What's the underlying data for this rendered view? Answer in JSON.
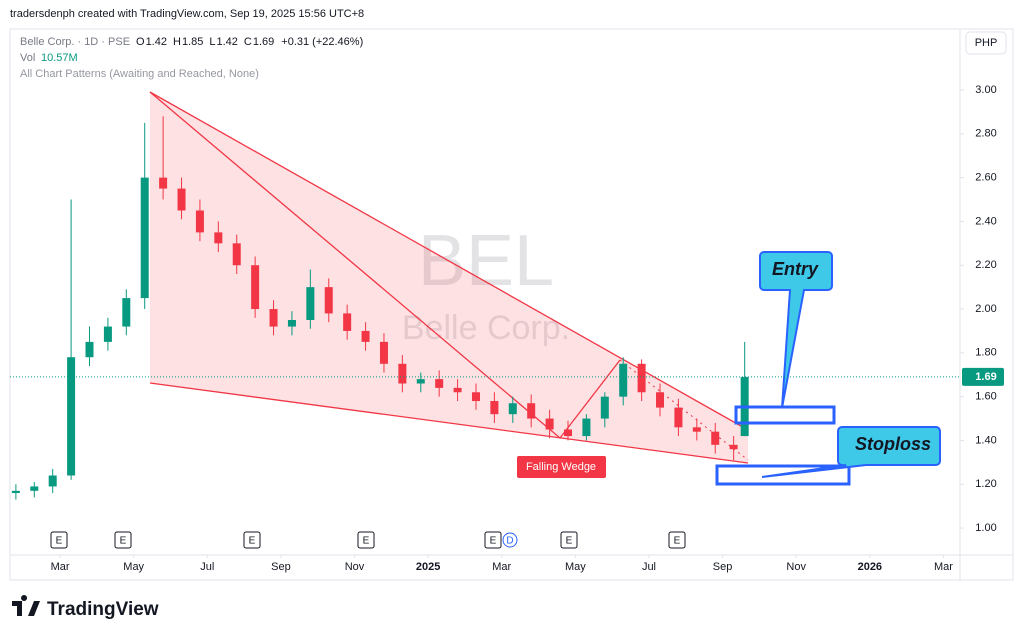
{
  "caption": "tradersdenph created with TradingView.com, Sep 19, 2025 15:56 UTC+8",
  "brand": "TradingView",
  "chart_data": {
    "type": "candlestick",
    "symbol": "Belle Corp. · 1D · PSE",
    "ohlc_legend": [
      [
        "O",
        "1.42"
      ],
      [
        "H",
        "1.85"
      ],
      [
        "L",
        "1.42"
      ],
      [
        "C",
        "1.69"
      ],
      [
        "",
        "+0.31 (+22.46%)"
      ]
    ],
    "volume_legend": [
      "Vol",
      "10.57M"
    ],
    "indicator": "All Chart Patterns (Awaiting and Reached, None)",
    "currency": "PHP",
    "watermark": [
      "BEL",
      "Belle Corp."
    ],
    "pattern_label": "Falling Wedge",
    "annotations": [
      "Entry",
      "Stoploss"
    ],
    "events": [
      "E",
      "E",
      "E",
      "E",
      "E",
      "D",
      "E",
      "E"
    ],
    "last_price": 1.69,
    "last_price_label": "1.69",
    "x": [
      0.8,
      1.3,
      1.8,
      2.3,
      2.8,
      3.3,
      3.8,
      4.3,
      4.8,
      5.3,
      5.8,
      6.3,
      6.8,
      7.3,
      7.8,
      8.3,
      8.8,
      9.3,
      9.8,
      10.3,
      10.8,
      11.3,
      11.8,
      12.3,
      12.8,
      13.3,
      13.8,
      14.3,
      14.8,
      15.3,
      15.8,
      16.3,
      16.8,
      17.3,
      17.8,
      18.3,
      18.8,
      19.3,
      19.8,
      20.3,
      20.6
    ],
    "open": [
      1.16,
      1.17,
      1.19,
      1.24,
      1.78,
      1.85,
      1.92,
      2.05,
      2.6,
      2.55,
      2.45,
      2.35,
      2.3,
      2.2,
      2.0,
      1.92,
      1.95,
      2.1,
      1.98,
      1.9,
      1.85,
      1.75,
      1.66,
      1.68,
      1.64,
      1.62,
      1.58,
      1.52,
      1.57,
      1.5,
      1.45,
      1.42,
      1.5,
      1.6,
      1.75,
      1.62,
      1.55,
      1.46,
      1.44,
      1.38,
      1.42
    ],
    "high": [
      1.2,
      1.21,
      1.27,
      2.5,
      1.92,
      1.96,
      2.09,
      2.85,
      2.88,
      2.6,
      2.5,
      2.4,
      2.34,
      2.24,
      2.04,
      1.99,
      2.18,
      2.14,
      2.02,
      1.94,
      1.89,
      1.79,
      1.71,
      1.72,
      1.68,
      1.66,
      1.62,
      1.6,
      1.61,
      1.54,
      1.49,
      1.52,
      1.62,
      1.78,
      1.77,
      1.66,
      1.59,
      1.5,
      1.48,
      1.42,
      1.85
    ],
    "low": [
      1.13,
      1.14,
      1.16,
      1.22,
      1.74,
      1.81,
      1.88,
      2.0,
      2.5,
      2.41,
      2.31,
      2.26,
      2.16,
      1.96,
      1.88,
      1.88,
      1.91,
      1.94,
      1.86,
      1.81,
      1.71,
      1.62,
      1.62,
      1.6,
      1.58,
      1.54,
      1.48,
      1.48,
      1.46,
      1.41,
      1.4,
      1.4,
      1.46,
      1.56,
      1.58,
      1.51,
      1.42,
      1.4,
      1.34,
      1.31,
      1.42
    ],
    "close": [
      1.17,
      1.19,
      1.24,
      1.78,
      1.85,
      1.92,
      2.05,
      2.6,
      2.55,
      2.45,
      2.35,
      2.3,
      2.2,
      2.0,
      1.92,
      1.95,
      2.1,
      1.98,
      1.9,
      1.85,
      1.75,
      1.66,
      1.68,
      1.64,
      1.62,
      1.58,
      1.52,
      1.57,
      1.5,
      1.45,
      1.42,
      1.5,
      1.6,
      1.75,
      1.62,
      1.55,
      1.46,
      1.44,
      1.38,
      1.36,
      1.69
    ],
    "up_color": "#089981",
    "down_color": "#f23645",
    "xlim": [
      0.64,
      26.45
    ],
    "ylim": [
      0.877,
      3.274
    ],
    "xticks": [
      {
        "value": 2,
        "label": "Mar"
      },
      {
        "value": 4,
        "label": "May"
      },
      {
        "value": 6,
        "label": "Jul"
      },
      {
        "value": 8,
        "label": "Sep"
      },
      {
        "value": 10,
        "label": "Nov"
      },
      {
        "value": 12,
        "label": "2025"
      },
      {
        "value": 14,
        "label": "Mar"
      },
      {
        "value": 16,
        "label": "May"
      },
      {
        "value": 18,
        "label": "Jul"
      },
      {
        "value": 20,
        "label": "Sep"
      },
      {
        "value": 22,
        "label": "Nov"
      },
      {
        "value": 24,
        "label": "2026"
      },
      {
        "value": 26,
        "label": "Mar"
      }
    ],
    "yticks": [
      {
        "value": 1,
        "label": "1.00"
      },
      {
        "value": 1.2,
        "label": "1.20"
      },
      {
        "value": 1.4,
        "label": "1.40"
      },
      {
        "value": 1.6,
        "label": "1.60"
      },
      {
        "value": 1.8,
        "label": "1.80"
      },
      {
        "value": 2,
        "label": "2.00"
      },
      {
        "value": 2.2,
        "label": "2.20"
      },
      {
        "value": 2.4,
        "label": "2.40"
      },
      {
        "value": 2.6,
        "label": "2.60"
      },
      {
        "value": 2.8,
        "label": "2.80"
      },
      {
        "value": 3,
        "label": "3.00"
      }
    ]
  }
}
